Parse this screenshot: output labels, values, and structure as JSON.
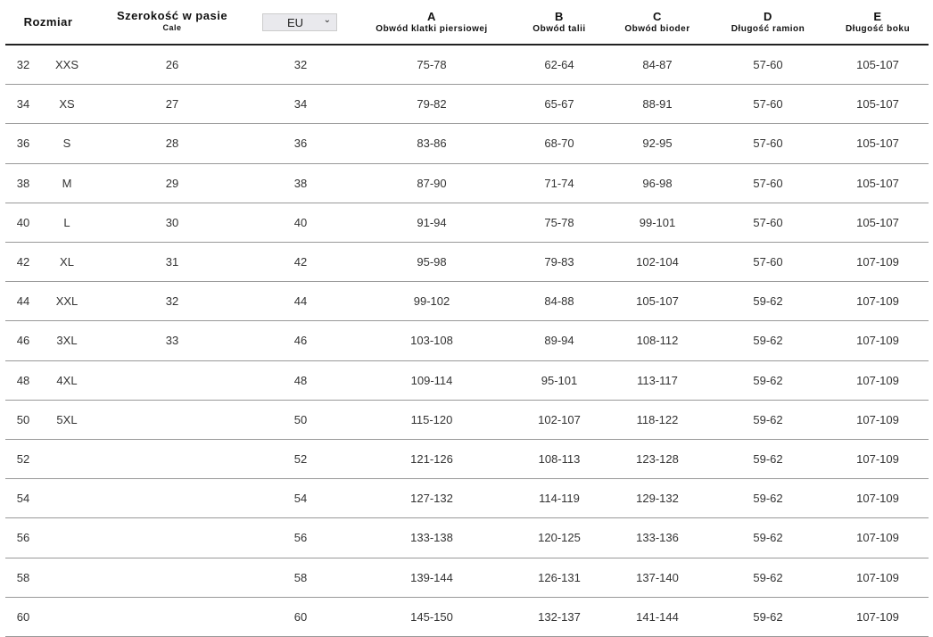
{
  "header": {
    "size": "Rozmiar",
    "waist": "Szerokość w pasie",
    "waist_unit": "Cale",
    "region_select": "EU",
    "cols": [
      {
        "letter": "A",
        "label": "Obwód klatki piersiowej"
      },
      {
        "letter": "B",
        "label": "Obwód talii"
      },
      {
        "letter": "C",
        "label": "Obwód bioder"
      },
      {
        "letter": "D",
        "label": "Długość ramion"
      },
      {
        "letter": "E",
        "label": "Długość boku"
      }
    ]
  },
  "rows": [
    [
      "32",
      "XXS",
      "26",
      "32",
      "75-78",
      "62-64",
      "84-87",
      "57-60",
      "105-107"
    ],
    [
      "34",
      "XS",
      "27",
      "34",
      "79-82",
      "65-67",
      "88-91",
      "57-60",
      "105-107"
    ],
    [
      "36",
      "S",
      "28",
      "36",
      "83-86",
      "68-70",
      "92-95",
      "57-60",
      "105-107"
    ],
    [
      "38",
      "M",
      "29",
      "38",
      "87-90",
      "71-74",
      "96-98",
      "57-60",
      "105-107"
    ],
    [
      "40",
      "L",
      "30",
      "40",
      "91-94",
      "75-78",
      "99-101",
      "57-60",
      "105-107"
    ],
    [
      "42",
      "XL",
      "31",
      "42",
      "95-98",
      "79-83",
      "102-104",
      "57-60",
      "107-109"
    ],
    [
      "44",
      "XXL",
      "32",
      "44",
      "99-102",
      "84-88",
      "105-107",
      "59-62",
      "107-109"
    ],
    [
      "46",
      "3XL",
      "33",
      "46",
      "103-108",
      "89-94",
      "108-112",
      "59-62",
      "107-109"
    ],
    [
      "48",
      "4XL",
      "",
      "48",
      "109-114",
      "95-101",
      "113-117",
      "59-62",
      "107-109"
    ],
    [
      "50",
      "5XL",
      "",
      "50",
      "115-120",
      "102-107",
      "118-122",
      "59-62",
      "107-109"
    ],
    [
      "52",
      "",
      "",
      "52",
      "121-126",
      "108-113",
      "123-128",
      "59-62",
      "107-109"
    ],
    [
      "54",
      "",
      "",
      "54",
      "127-132",
      "114-119",
      "129-132",
      "59-62",
      "107-109"
    ],
    [
      "56",
      "",
      "",
      "56",
      "133-138",
      "120-125",
      "133-136",
      "59-62",
      "107-109"
    ],
    [
      "58",
      "",
      "",
      "58",
      "139-144",
      "126-131",
      "137-140",
      "59-62",
      "107-109"
    ],
    [
      "60",
      "",
      "",
      "60",
      "145-150",
      "132-137",
      "141-144",
      "59-62",
      "107-109"
    ]
  ]
}
